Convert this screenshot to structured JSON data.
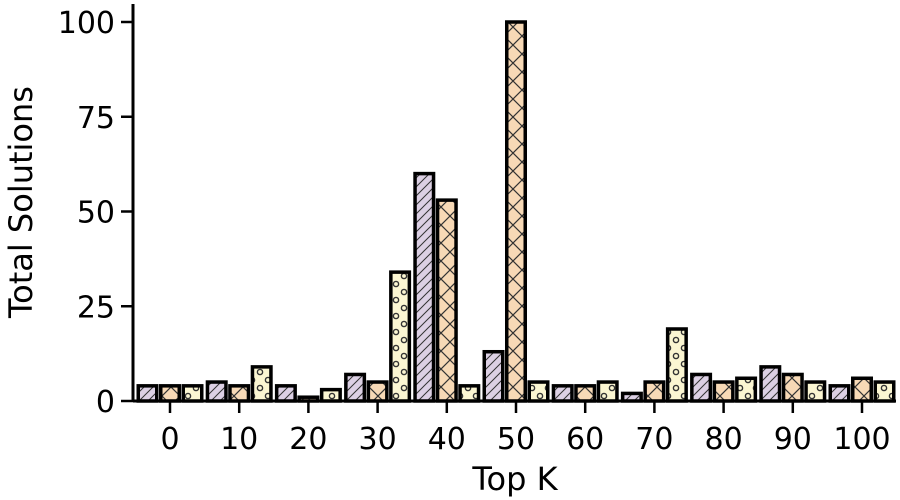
{
  "chart_data": {
    "type": "bar",
    "xlabel": "Top K",
    "ylabel": "Total Solutions",
    "ylim": [
      0,
      105
    ],
    "yticks": [
      0,
      25,
      50,
      75,
      100
    ],
    "grid": false,
    "legend": "none",
    "categories": [
      "0",
      "10",
      "20",
      "30",
      "40",
      "50",
      "60",
      "70",
      "80",
      "90",
      "100"
    ],
    "series": [
      {
        "values": [
          4,
          5,
          4,
          7,
          60,
          13,
          4,
          2,
          7,
          9,
          4
        ],
        "color": "#dcd0e4",
        "hatch": "diagonal"
      },
      {
        "values": [
          4,
          4,
          1,
          5,
          53,
          100,
          4,
          5,
          5,
          7,
          6
        ],
        "color": "#f7d9b6",
        "hatch": "cross"
      },
      {
        "values": [
          4,
          9,
          3,
          34,
          4,
          5,
          5,
          19,
          6,
          5,
          5
        ],
        "color": "#fbf6d2",
        "hatch": "dots"
      }
    ]
  }
}
